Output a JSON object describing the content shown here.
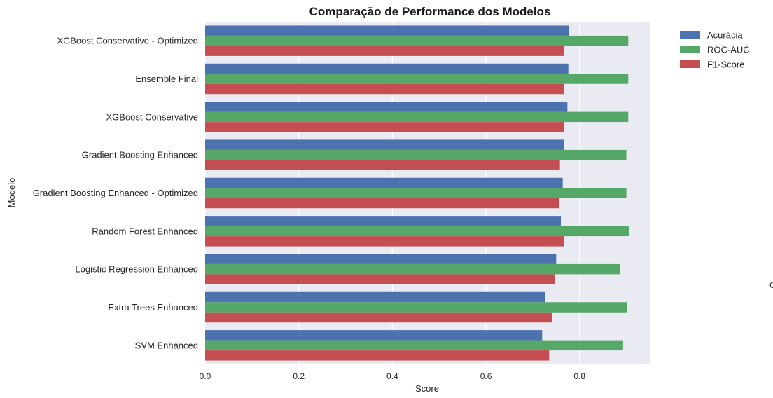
{
  "chart_data": {
    "type": "bar",
    "orientation": "horizontal",
    "title": "Comparação de Performance dos Modelos",
    "title_icon": "",
    "xlabel": "Score",
    "ylabel": "Modelo",
    "xlim": [
      0.0,
      0.95
    ],
    "xticks": [
      0.0,
      0.2,
      0.4,
      0.6,
      0.8
    ],
    "xtick_labels": [
      "0.0",
      "0.2",
      "0.4",
      "0.6",
      "0.8"
    ],
    "grid": true,
    "legend_position": "upper-right-outside",
    "categories": [
      "XGBoost Conservative - Optimized",
      "Ensemble Final",
      "XGBoost Conservative",
      "Gradient Boosting Enhanced",
      "Gradient Boosting Enhanced - Optimized",
      "Random Forest Enhanced",
      "Logistic Regression Enhanced",
      "Extra Trees Enhanced",
      "SVM Enhanced"
    ],
    "series": [
      {
        "name": "Acurácia",
        "color": "#4c72b0",
        "values": [
          0.778,
          0.776,
          0.774,
          0.766,
          0.764,
          0.76,
          0.75,
          0.727,
          0.72
        ]
      },
      {
        "name": "ROC-AUC",
        "color": "#55a868",
        "values": [
          0.904,
          0.904,
          0.904,
          0.9,
          0.9,
          0.905,
          0.887,
          0.901,
          0.893
        ]
      },
      {
        "name": "F1-Score",
        "color": "#c44e52",
        "values": [
          0.767,
          0.766,
          0.766,
          0.758,
          0.757,
          0.766,
          0.748,
          0.741,
          0.735
        ]
      }
    ]
  },
  "edge_fragment": "C"
}
